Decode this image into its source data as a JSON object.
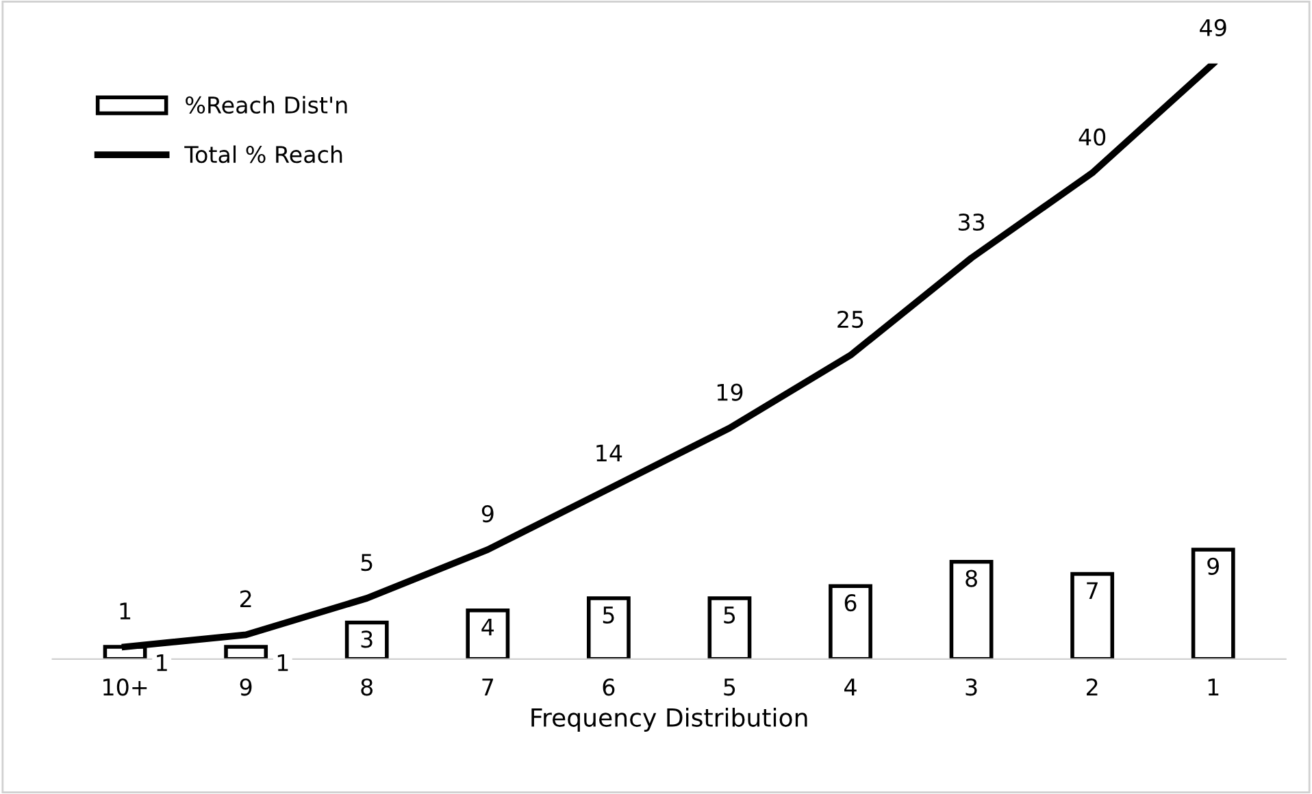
{
  "chart_data": {
    "type": "bar",
    "xlabel": "Frequency Distribution",
    "categories": [
      "10+",
      "9",
      "8",
      "7",
      "6",
      "5",
      "4",
      "3",
      "2",
      "1"
    ],
    "series": [
      {
        "name": "%Reach Dist'n",
        "color": "#ffffff",
        "values": [
          1,
          1,
          3,
          4,
          5,
          5,
          6,
          8,
          7,
          9
        ]
      },
      {
        "name": "Total % Reach",
        "type": "line",
        "color": "#000000",
        "values": [
          1,
          2,
          5,
          9,
          14,
          19,
          25,
          33,
          40,
          49
        ]
      }
    ],
    "data_labels": true,
    "legend": "top left",
    "grid": false,
    "marker": "none",
    "line_style": "solid"
  }
}
